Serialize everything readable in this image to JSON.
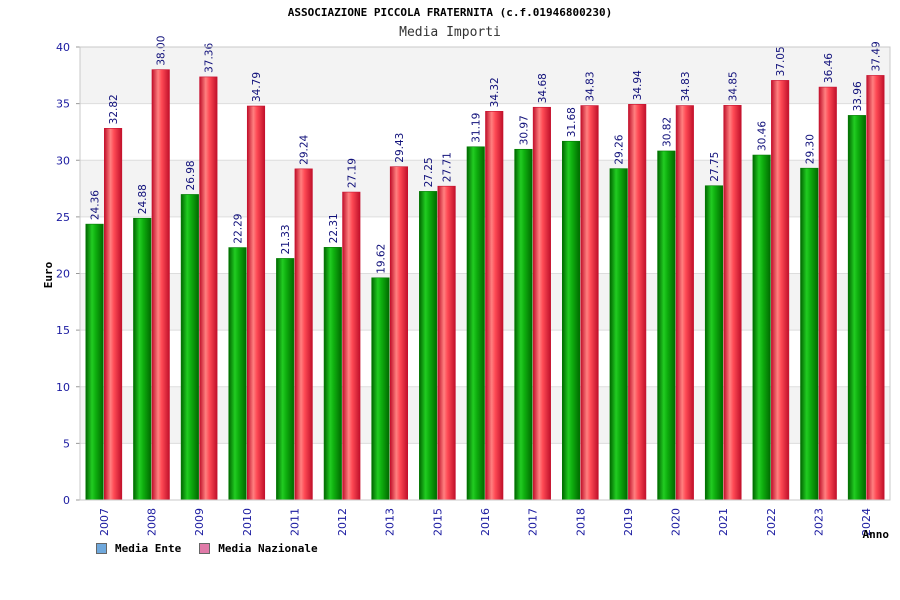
{
  "header": {
    "title": "ASSOCIAZIONE PICCOLA FRATERNITA (c.f.01946800230)",
    "subtitle": "Media Importi"
  },
  "legend": {
    "ente_label": "Media Ente",
    "nazionale_label": "Media Nazionale",
    "ente_color": "#6fa8dc",
    "nazionale_color": "#e07aa8"
  },
  "colors": {
    "ente": "#10b010",
    "ente_dark": "#007a00",
    "nazionale": "#ff3a48",
    "nazionale_dark": "#c8102e",
    "band": "#f3f3f3",
    "axis_text": "#1a1aa0",
    "label_text": "#10107a"
  },
  "chart_data": {
    "type": "bar",
    "title": "ASSOCIAZIONE PICCOLA FRATERNITA (c.f.01946800230)",
    "subtitle": "Media Importi",
    "xlabel": "Anno",
    "ylabel": "Euro",
    "ylim": [
      0,
      40
    ],
    "yticks": [
      0,
      5,
      10,
      15,
      20,
      25,
      30,
      35,
      40
    ],
    "categories": [
      "2007",
      "2008",
      "2009",
      "2010",
      "2011",
      "2012",
      "2013",
      "2015",
      "2016",
      "2017",
      "2018",
      "2019",
      "2020",
      "2021",
      "2022",
      "2023",
      "2024"
    ],
    "series": [
      {
        "name": "Media Ente",
        "values": [
          24.36,
          24.88,
          26.98,
          22.29,
          21.33,
          22.31,
          19.62,
          27.25,
          31.19,
          30.97,
          31.68,
          29.26,
          30.82,
          27.75,
          30.46,
          29.3,
          33.96
        ],
        "labels": [
          "24.36",
          "24.88",
          "26.98",
          "22.29",
          "21.33",
          "22.31",
          "19.62",
          "27.25",
          "31.19",
          "30.97",
          "31.68",
          "29.26",
          "30.82",
          "27.75",
          "30.46",
          "29.30",
          "33.96"
        ]
      },
      {
        "name": "Media Nazionale",
        "values": [
          32.82,
          38.0,
          37.36,
          34.79,
          29.24,
          27.19,
          29.43,
          27.71,
          34.32,
          34.68,
          34.83,
          34.94,
          34.83,
          34.85,
          37.05,
          36.46,
          37.49
        ],
        "labels": [
          "32.82",
          "38.00",
          "37.36",
          "34.79",
          "29.24",
          "27.19",
          "29.43",
          "27.71",
          "34.32",
          "34.68",
          "34.83",
          "34.94",
          "34.83",
          "34.85",
          "37.05",
          "36.46",
          "37.49"
        ]
      }
    ],
    "grid": true,
    "legend_position": "bottom-left"
  }
}
